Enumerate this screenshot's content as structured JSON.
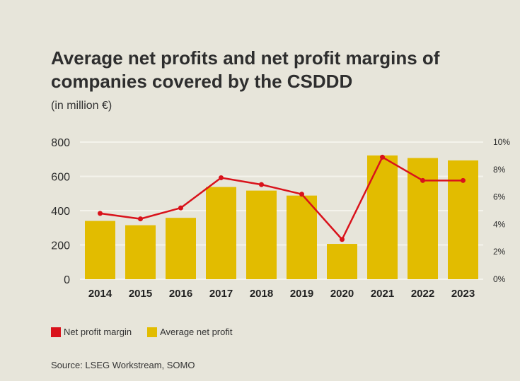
{
  "title": "Average net profits and net profit margins of companies covered by the CSDDD",
  "subtitle": "(in million €)",
  "source": "Source: LSEG Workstream, SOMO",
  "colors": {
    "bar": "#e2bc00",
    "line": "#d9121b",
    "grid": "#f4f3ec",
    "background": "#e7e5da"
  },
  "legend": {
    "margin_label": "Net profit margin",
    "profit_label": "Average net profit"
  },
  "chart_data": {
    "type": "bar",
    "title": "Average net profits and net profit margins of companies covered by the CSDDD",
    "subtitle": "(in million €)",
    "categories": [
      "2014",
      "2015",
      "2016",
      "2017",
      "2018",
      "2019",
      "2020",
      "2021",
      "2022",
      "2023"
    ],
    "series": [
      {
        "name": "Average net profit",
        "type": "bar",
        "axis": "left",
        "values": [
          340,
          315,
          358,
          538,
          517,
          488,
          206,
          722,
          707,
          693
        ]
      },
      {
        "name": "Net profit margin",
        "type": "line",
        "axis": "right",
        "values": [
          4.8,
          4.4,
          5.2,
          7.4,
          6.9,
          6.2,
          2.9,
          8.9,
          7.2,
          7.2
        ]
      }
    ],
    "ylim": [
      0,
      800
    ],
    "yticks": [
      "0",
      "200",
      "400",
      "600",
      "800"
    ],
    "y2lim": [
      0,
      10
    ],
    "y2ticks": [
      "0%",
      "2%",
      "4%",
      "6%",
      "8%",
      "10%"
    ],
    "xlabel": "",
    "ylabel": "",
    "y2label": "",
    "grid": true
  }
}
